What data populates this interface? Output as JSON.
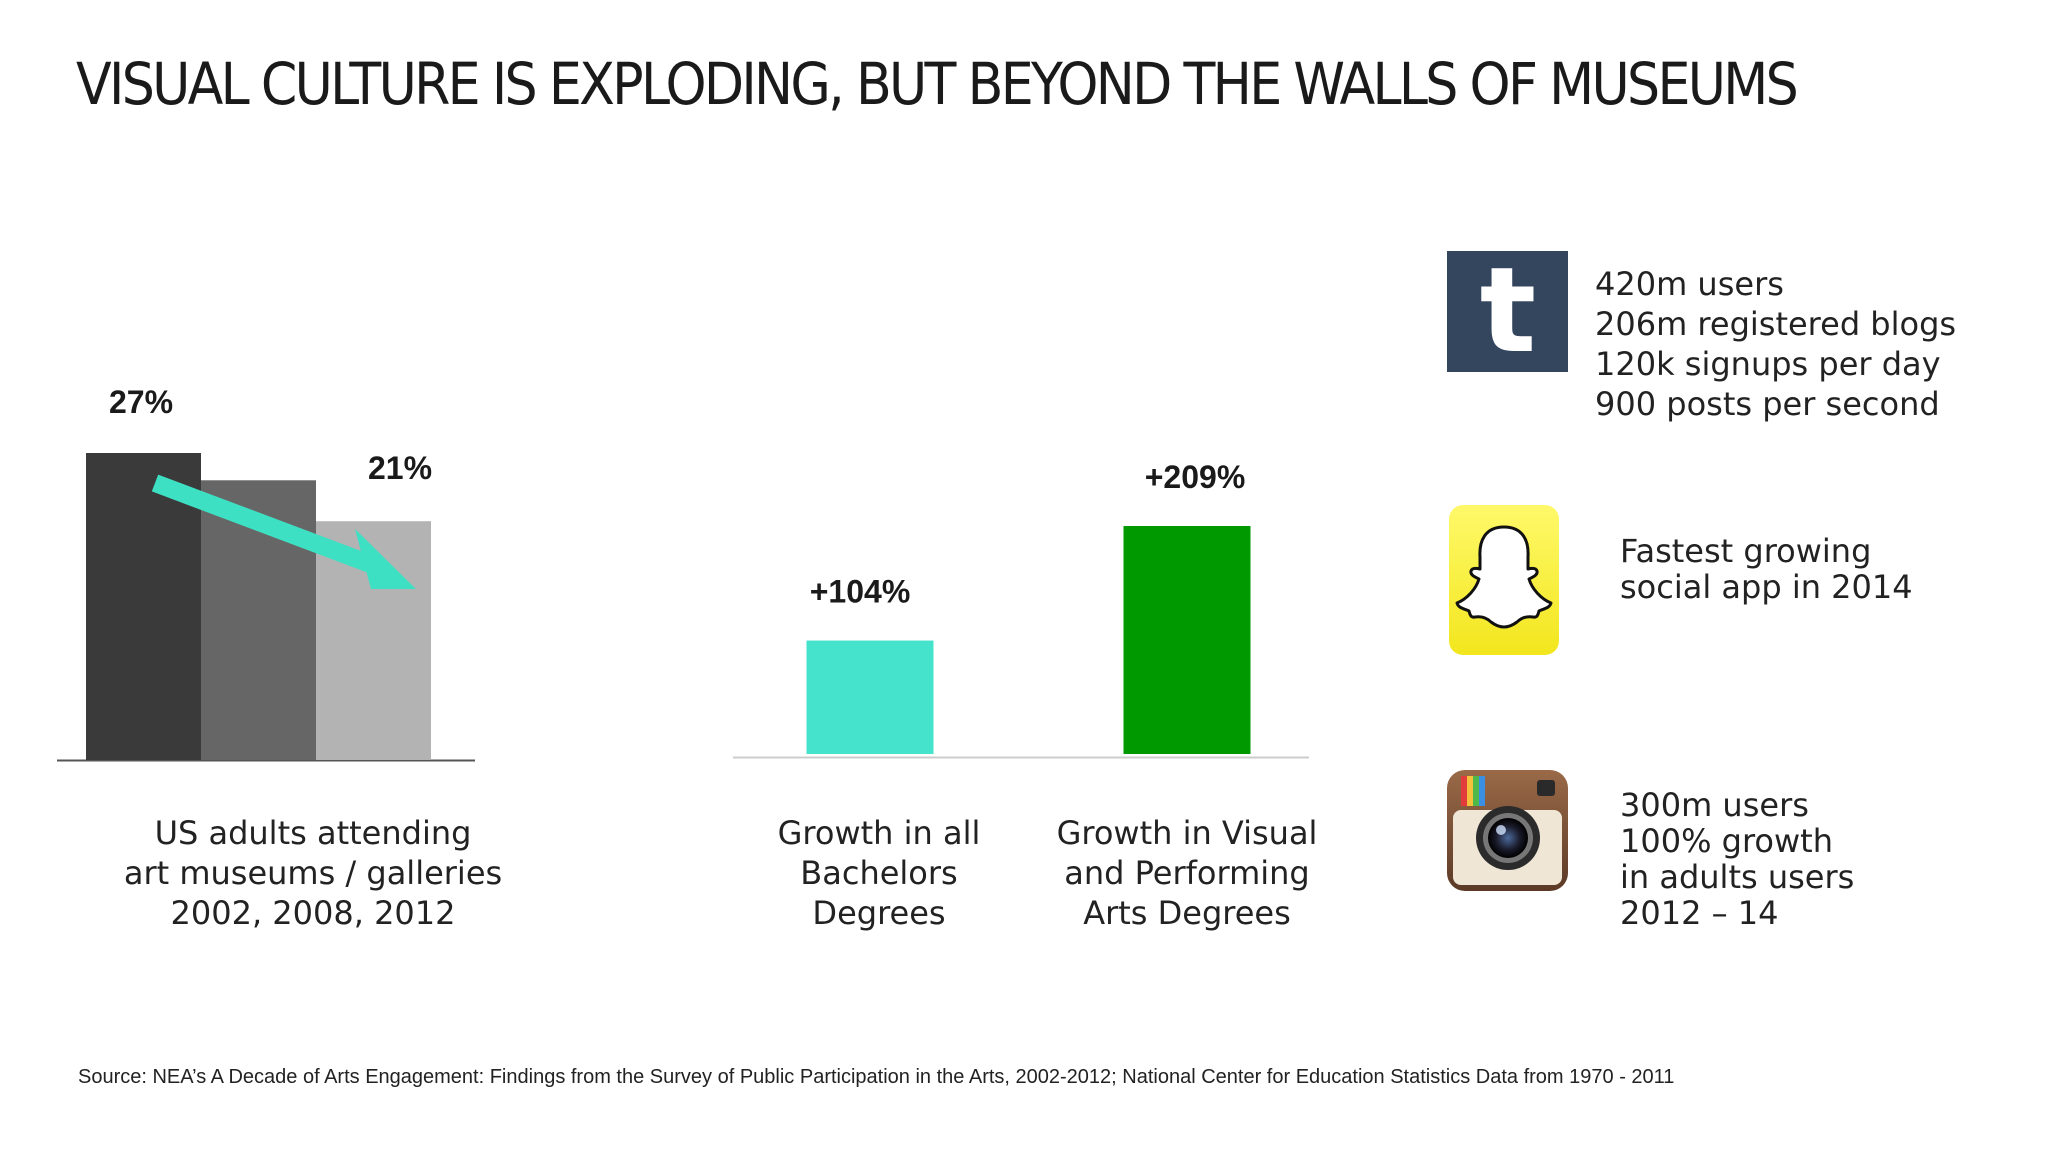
{
  "title": "VISUAL CULTURE IS EXPLODING, BUT BEYOND THE WALLS OF MUSEUMS",
  "chart_data": [
    {
      "type": "bar",
      "categories": [
        "2002",
        "2008",
        "2012"
      ],
      "values": [
        27,
        24.6,
        21
      ],
      "data_labels": [
        "27%",
        "",
        "21%"
      ],
      "ylim": [
        0,
        27
      ],
      "colors": [
        "#3a3a3a",
        "#666666",
        "#b3b3b3"
      ],
      "trend_arrow_color": "#3ee0c4",
      "caption": [
        "US adults attending",
        "art museums / galleries",
        "2002, 2008, 2012"
      ],
      "grid": false
    },
    {
      "type": "bar",
      "categories": [
        "Growth in all Bachelors Degrees",
        "Growth in Visual and Performing Arts Degrees"
      ],
      "values": [
        104,
        209
      ],
      "data_labels": [
        "+104%",
        "+209%"
      ],
      "ylim": [
        0,
        209
      ],
      "colors": [
        "#45e3cc",
        "#009900"
      ],
      "captions": [
        [
          "Growth in all",
          "Bachelors",
          "Degrees"
        ],
        [
          "Growth in Visual",
          "and Performing",
          "Arts Degrees"
        ]
      ],
      "grid": false
    }
  ],
  "apps": {
    "tumblr": {
      "icon": "tumblr-icon",
      "icon_color": "#34465d",
      "lines": [
        "420m users",
        "206m registered blogs",
        "120k signups per day",
        "900 posts per second"
      ]
    },
    "snapchat": {
      "icon": "snapchat-icon",
      "icon_color": "#fffc00",
      "lines": [
        "Fastest growing",
        "social app in 2014"
      ]
    },
    "instagram": {
      "icon": "instagram-icon",
      "icon_color": "#8a5a3c",
      "lines": [
        "300m users",
        "100% growth",
        "in adults users",
        "2012 – 14"
      ]
    }
  },
  "source": "Source: NEA’s A Decade of Arts Engagement: Findings from the Survey of Public Participation in the Arts, 2002-2012; National Center for Education Statistics  Data from 1970 - 2011"
}
